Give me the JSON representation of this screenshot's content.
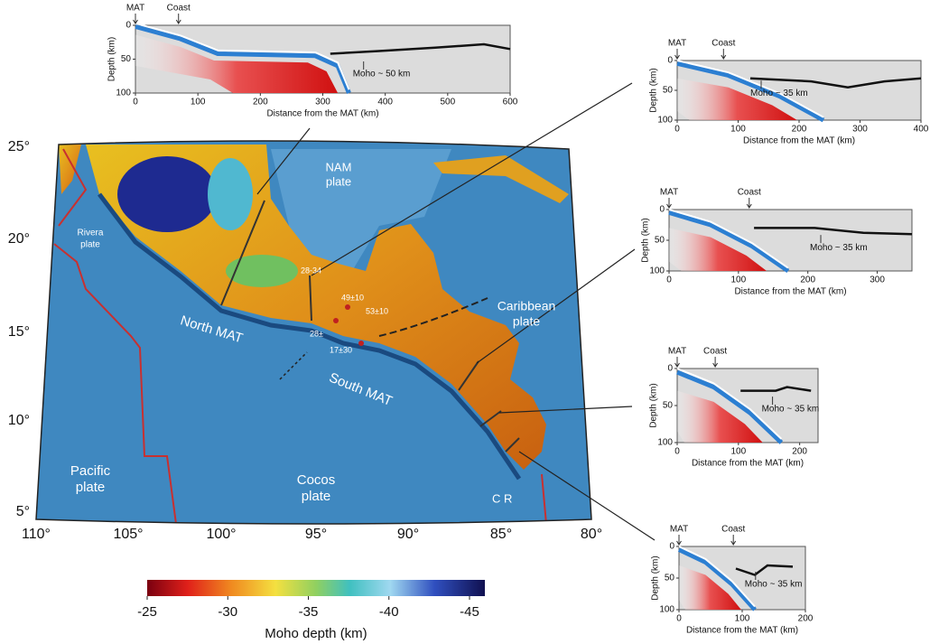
{
  "map": {
    "lat_labels": [
      "25°",
      "20°",
      "15°",
      "10°",
      "5°"
    ],
    "lon_labels": [
      "110°",
      "105°",
      "100°",
      "95°",
      "90°",
      "85°",
      "80°"
    ],
    "plates": {
      "nam": [
        "NAM",
        "plate"
      ],
      "rivera": [
        "Rivera",
        "plate"
      ],
      "pacific": [
        "Pacific",
        "plate"
      ],
      "cocos": [
        "Cocos",
        "plate"
      ],
      "caribbean": [
        "Caribbean",
        "plate"
      ],
      "cr": "C R"
    },
    "trenches": {
      "north": "North MAT",
      "south": "South MAT"
    },
    "estimates": [
      "28-34",
      "49±10",
      "53±10",
      "28±",
      "17±30"
    ]
  },
  "colorbar": {
    "ticks": [
      -25,
      -30,
      -35,
      -40,
      -45
    ],
    "label": "Moho depth (km)"
  },
  "profiles": [
    {
      "mat": "MAT",
      "coast": "Coast",
      "moho": "Moho ~ 50 km",
      "y_label": "Depth (km)",
      "x_label": "Distance from the MAT (km)",
      "xlim": [
        0,
        600
      ],
      "xticks": [
        0,
        100,
        200,
        300,
        400,
        500,
        600
      ],
      "ylim": [
        0,
        100
      ],
      "yticks": [
        0,
        50,
        100
      ]
    },
    {
      "mat": "MAT",
      "coast": "Coast",
      "moho": "Moho ~ 35 km",
      "y_label": "Depth (km)",
      "x_label": "Distance from the MAT (km)",
      "xlim": [
        0,
        400
      ],
      "xticks": [
        0,
        100,
        200,
        300,
        400
      ],
      "ylim": [
        0,
        100
      ],
      "yticks": [
        0,
        50,
        100
      ]
    },
    {
      "mat": "MAT",
      "coast": "Coast",
      "moho": "Moho ~ 35 km",
      "y_label": "Depth (km)",
      "x_label": "Distance from the MAT (km)",
      "xlim": [
        0,
        350
      ],
      "xticks": [
        0,
        100,
        200,
        300
      ],
      "ylim": [
        0,
        100
      ],
      "yticks": [
        0,
        50,
        100
      ]
    },
    {
      "mat": "MAT",
      "coast": "Coast",
      "moho": "Moho ~ 35 km",
      "y_label": "Depth (km)",
      "x_label": "Distance from the MAT (km)",
      "xlim": [
        0,
        230
      ],
      "xticks": [
        0,
        100,
        200
      ],
      "ylim": [
        0,
        100
      ],
      "yticks": [
        0,
        50,
        100
      ]
    },
    {
      "mat": "MAT",
      "coast": "Coast",
      "moho": "Moho ~ 35 km",
      "y_label": "Depth (km)",
      "x_label": "Distance from the MAT (km)",
      "xlim": [
        0,
        200
      ],
      "xticks": [
        0,
        100,
        200
      ],
      "ylim": [
        0,
        100
      ],
      "yticks": [
        0,
        50,
        100
      ]
    }
  ]
}
